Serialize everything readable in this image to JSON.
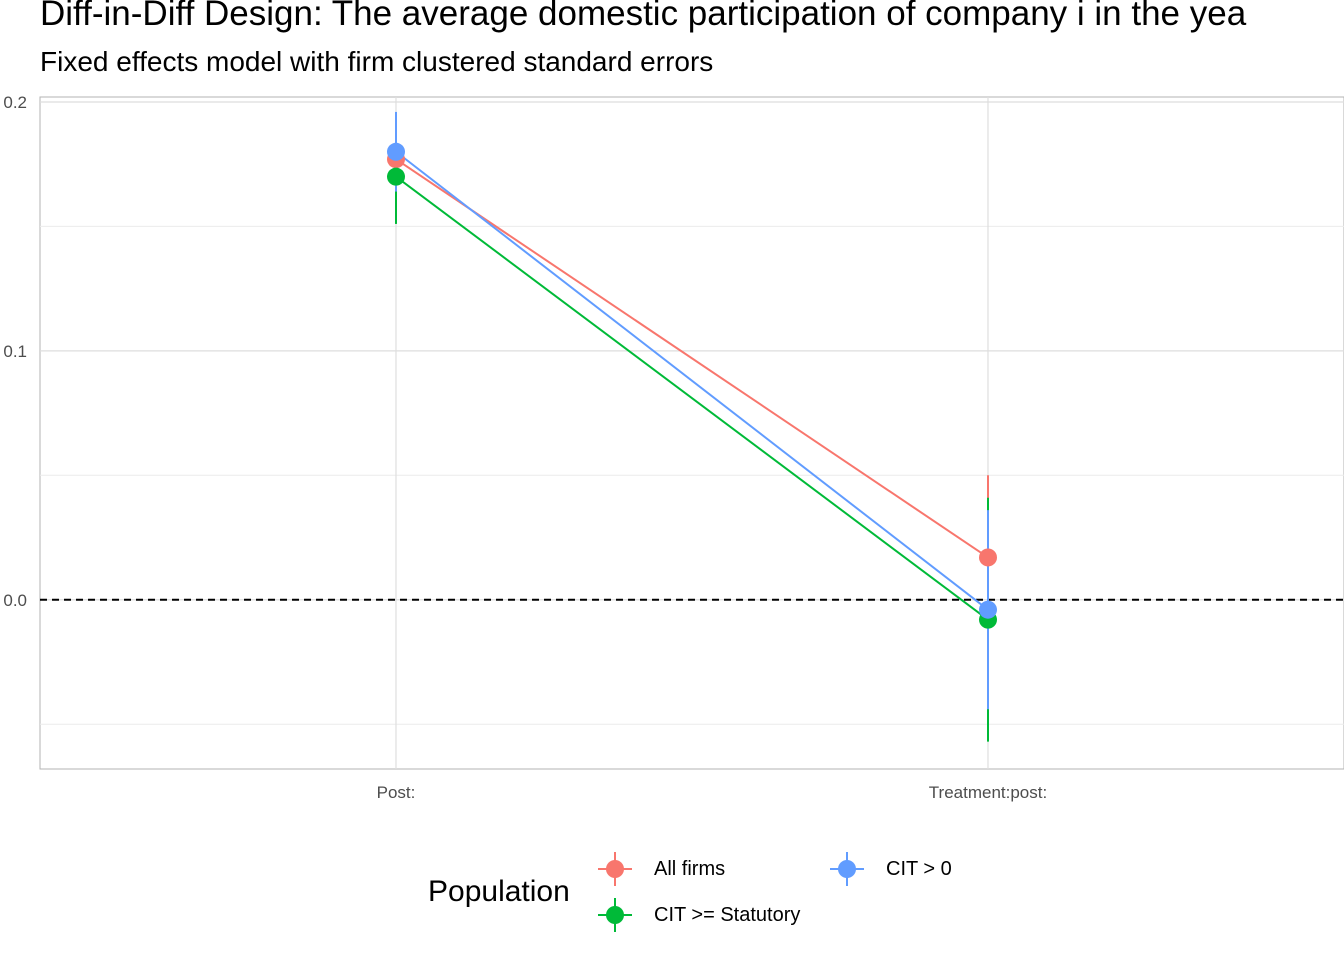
{
  "chart_data": {
    "type": "scatter",
    "title": "Diff-in-Diff Design: The average domestic participation of company i in the yea",
    "subtitle": "Fixed effects model with firm clustered standard errors",
    "categories": [
      "Post:",
      "Treatment:post:"
    ],
    "ylim": [
      -0.068,
      0.202
    ],
    "yticks": [
      0.0,
      0.1,
      0.2
    ],
    "ytick_labels": [
      "0.0",
      "0.1",
      "0.2"
    ],
    "reference_line": 0.0,
    "grid": true,
    "legend": {
      "title": "Population",
      "position": "bottom"
    },
    "series": [
      {
        "name": "All firms",
        "color": "#F8766D",
        "values": [
          0.177,
          0.017
        ],
        "lower": [
          0.166,
          -0.016
        ],
        "upper": [
          0.189,
          0.05
        ]
      },
      {
        "name": "CIT >= Statutory",
        "color": "#00BA38",
        "values": [
          0.17,
          -0.008
        ],
        "lower": [
          0.151,
          -0.057
        ],
        "upper": [
          0.189,
          0.041
        ]
      },
      {
        "name": "CIT > 0",
        "color": "#619CFF",
        "values": [
          0.18,
          -0.004
        ],
        "lower": [
          0.164,
          -0.044
        ],
        "upper": [
          0.196,
          0.036
        ]
      }
    ]
  }
}
